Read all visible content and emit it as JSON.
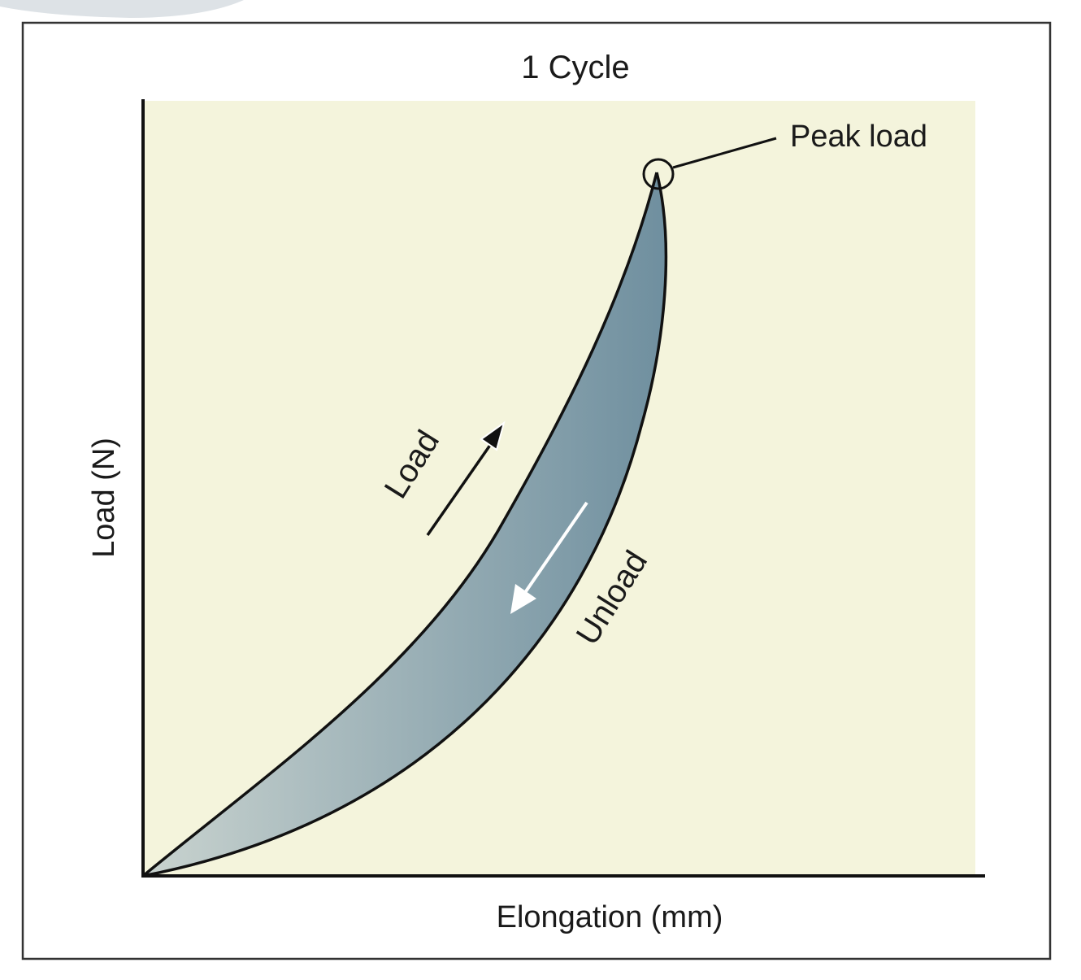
{
  "figure": {
    "title": "1 Cycle",
    "x_axis_label": "Elongation (mm)",
    "y_axis_label": "Load (N)",
    "peak_label": "Peak load",
    "load_label": "Load",
    "unload_label": "Unload"
  },
  "colors": {
    "plot_background": "#f4f4dc",
    "loop_fill_light": "#c9d3cf",
    "loop_fill_dark": "#6f8f9f",
    "line": "#111111",
    "unload_arrow": "#ffffff"
  }
}
